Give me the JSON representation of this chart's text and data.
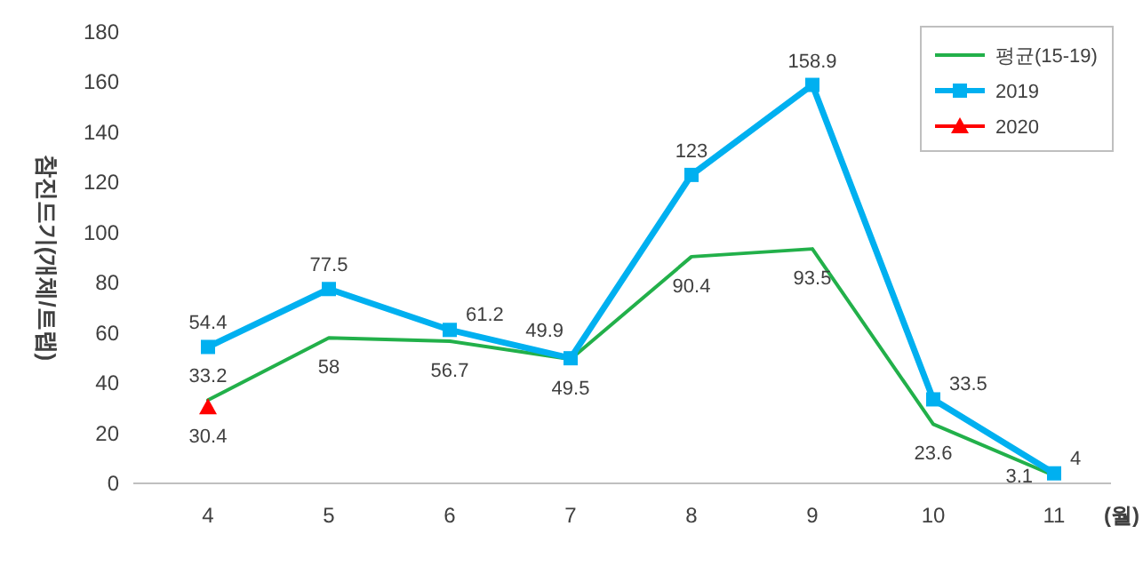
{
  "chart_data": {
    "type": "line",
    "ylabel": "참진드기(개체/트랩)",
    "xlabel": "(월)",
    "categories": [
      "4",
      "5",
      "6",
      "7",
      "8",
      "9",
      "10",
      "11"
    ],
    "ylim": [
      0,
      180
    ],
    "yticks": [
      0,
      20,
      40,
      60,
      80,
      100,
      120,
      140,
      160,
      180
    ],
    "grid": false,
    "legend": "top right",
    "data_labels": true,
    "series": [
      {
        "name": "평균(15-19)",
        "color": "#22b04a",
        "marker": "none",
        "values": [
          33.2,
          58,
          56.7,
          49.5,
          90.4,
          93.5,
          23.6,
          3.1
        ]
      },
      {
        "name": "2019",
        "color": "#00b0f0",
        "marker": "square",
        "values": [
          54.4,
          77.5,
          61.2,
          49.9,
          123,
          158.9,
          33.5,
          4
        ]
      },
      {
        "name": "2020",
        "color": "#ff0000",
        "marker": "triangle",
        "values": [
          30.4,
          null,
          null,
          null,
          null,
          null,
          null,
          null
        ]
      }
    ]
  }
}
